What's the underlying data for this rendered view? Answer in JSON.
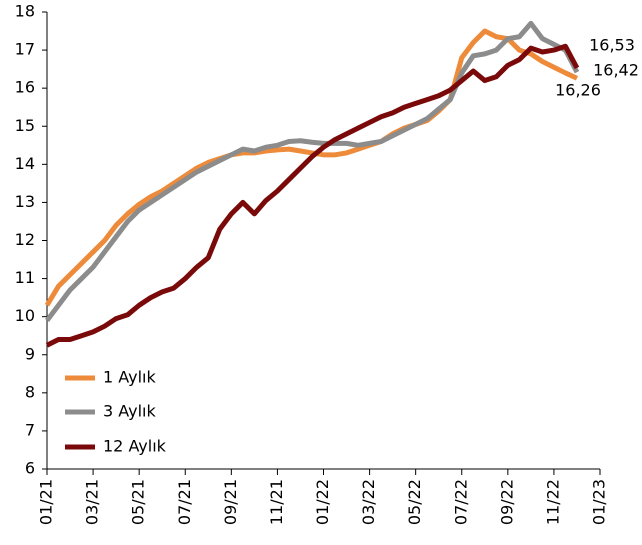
{
  "chart_data": {
    "type": "line",
    "x": [
      0,
      0.5,
      1,
      1.5,
      2,
      2.5,
      3,
      3.5,
      4,
      4.5,
      5,
      5.5,
      6,
      6.5,
      7,
      7.5,
      8,
      8.5,
      9,
      9.5,
      10,
      10.5,
      11,
      11.5,
      12,
      12.5,
      13,
      13.5,
      14,
      14.5,
      15,
      15.5,
      16,
      16.5,
      17,
      17.5,
      18,
      18.5,
      19,
      19.5,
      20,
      20.5,
      21,
      21.5,
      22,
      22.5,
      23
    ],
    "series": [
      {
        "name": "1 Aylık",
        "color": "#ED8B3A",
        "values": [
          10.3,
          10.8,
          11.1,
          11.4,
          11.7,
          12.0,
          12.4,
          12.7,
          12.95,
          13.15,
          13.3,
          13.5,
          13.7,
          13.9,
          14.05,
          14.15,
          14.25,
          14.3,
          14.3,
          14.35,
          14.38,
          14.4,
          14.35,
          14.3,
          14.25,
          14.25,
          14.3,
          14.4,
          14.5,
          14.6,
          14.8,
          14.95,
          15.05,
          15.15,
          15.4,
          15.7,
          16.8,
          17.2,
          17.5,
          17.35,
          17.3,
          17.0,
          16.9,
          16.7,
          16.55,
          16.4,
          16.26
        ]
      },
      {
        "name": "3 Aylık",
        "color": "#8C8C8C",
        "values": [
          9.9,
          10.3,
          10.7,
          11.0,
          11.3,
          11.7,
          12.1,
          12.5,
          12.8,
          13.0,
          13.2,
          13.4,
          13.6,
          13.8,
          13.95,
          14.1,
          14.25,
          14.4,
          14.35,
          14.45,
          14.5,
          14.6,
          14.62,
          14.58,
          14.55,
          14.55,
          14.55,
          14.5,
          14.55,
          14.6,
          14.75,
          14.9,
          15.05,
          15.2,
          15.45,
          15.7,
          16.4,
          16.85,
          16.9,
          17.0,
          17.3,
          17.35,
          17.7,
          17.3,
          17.15,
          17.0,
          16.42
        ]
      },
      {
        "name": "12 Aylık",
        "color": "#7A0A0A",
        "values": [
          9.25,
          9.4,
          9.4,
          9.5,
          9.6,
          9.75,
          9.95,
          10.05,
          10.3,
          10.5,
          10.65,
          10.75,
          11.0,
          11.3,
          11.55,
          12.3,
          12.7,
          13.0,
          12.7,
          13.05,
          13.3,
          13.6,
          13.9,
          14.2,
          14.45,
          14.65,
          14.8,
          14.95,
          15.1,
          15.25,
          15.35,
          15.5,
          15.6,
          15.7,
          15.8,
          15.95,
          16.2,
          16.45,
          16.2,
          16.3,
          16.6,
          16.75,
          17.05,
          16.95,
          17.0,
          17.1,
          16.53
        ]
      }
    ],
    "annotations": [
      "16,53",
      "16,42",
      "16,26"
    ],
    "xlim": [
      0,
      24
    ],
    "xticks": [
      {
        "value": 0,
        "label": "01/21"
      },
      {
        "value": 2,
        "label": "03/21"
      },
      {
        "value": 4,
        "label": "05/21"
      },
      {
        "value": 6,
        "label": "07/21"
      },
      {
        "value": 8,
        "label": "09/21"
      },
      {
        "value": 10,
        "label": "11/21"
      },
      {
        "value": 12,
        "label": "01/22"
      },
      {
        "value": 14,
        "label": "03/22"
      },
      {
        "value": 16,
        "label": "05/22"
      },
      {
        "value": 18,
        "label": "07/22"
      },
      {
        "value": 20,
        "label": "09/22"
      },
      {
        "value": 22,
        "label": "11/22"
      },
      {
        "value": 24,
        "label": "01/23"
      }
    ],
    "ylim": [
      6,
      18
    ],
    "yticks": [
      6,
      7,
      8,
      9,
      10,
      11,
      12,
      13,
      14,
      15,
      16,
      17,
      18
    ],
    "grid": false,
    "legend": "lower left"
  }
}
